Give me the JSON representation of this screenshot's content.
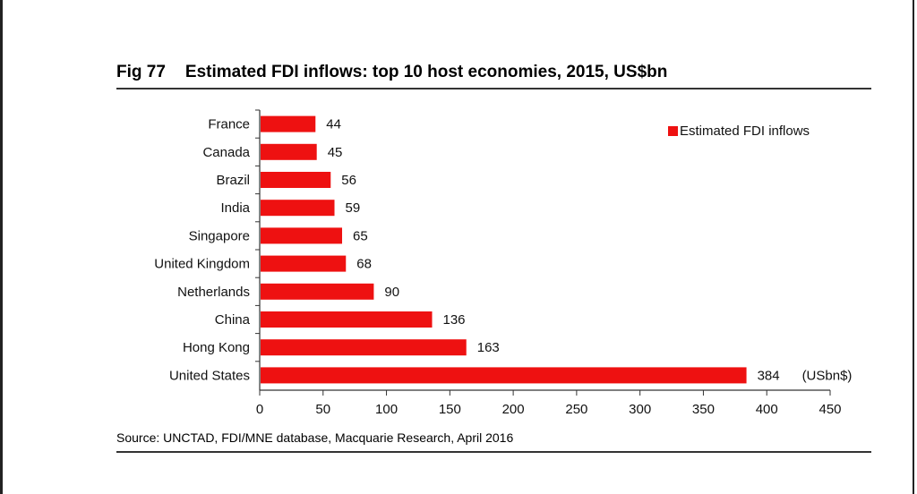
{
  "figure": {
    "number": "Fig 77",
    "title": "Estimated FDI inflows: top 10 host economies, 2015, US$bn",
    "source": "Source: UNCTAD, FDI/MNE database, Macquarie Research, April 2016"
  },
  "chart_data": {
    "type": "bar",
    "orientation": "horizontal",
    "categories": [
      "France",
      "Canada",
      "Brazil",
      "India",
      "Singapore",
      "United Kingdom",
      "Netherlands",
      "China",
      "Hong Kong",
      "United States"
    ],
    "series": [
      {
        "name": "Estimated FDI inflows",
        "values": [
          44,
          45,
          56,
          59,
          65,
          68,
          90,
          136,
          163,
          384
        ],
        "color": "#ee1111"
      }
    ],
    "xlim": [
      0,
      450
    ],
    "xticks": [
      0,
      50,
      100,
      150,
      200,
      250,
      300,
      350,
      400,
      450
    ],
    "unit_label": "(USbn$)",
    "legend_position": "top-right",
    "grid": false
  }
}
